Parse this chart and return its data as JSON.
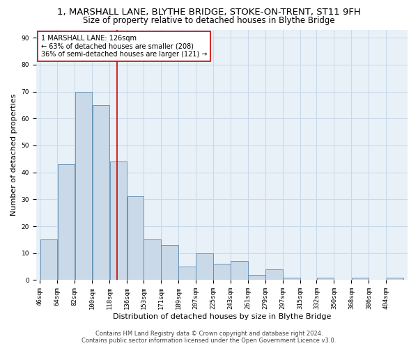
{
  "title": "1, MARSHALL LANE, BLYTHE BRIDGE, STOKE-ON-TRENT, ST11 9FH",
  "subtitle": "Size of property relative to detached houses in Blythe Bridge",
  "xlabel": "Distribution of detached houses by size in Blythe Bridge",
  "ylabel": "Number of detached properties",
  "categories": [
    "46sqm",
    "64sqm",
    "82sqm",
    "100sqm",
    "118sqm",
    "136sqm",
    "153sqm",
    "171sqm",
    "189sqm",
    "207sqm",
    "225sqm",
    "243sqm",
    "261sqm",
    "279sqm",
    "297sqm",
    "315sqm",
    "332sqm",
    "350sqm",
    "368sqm",
    "386sqm",
    "404sqm"
  ],
  "values": [
    15,
    43,
    70,
    65,
    44,
    31,
    15,
    13,
    5,
    10,
    6,
    7,
    2,
    4,
    1,
    0,
    1,
    0,
    1,
    0,
    1
  ],
  "bin_edges": [
    46,
    64,
    82,
    100,
    118,
    136,
    153,
    171,
    189,
    207,
    225,
    243,
    261,
    279,
    297,
    315,
    332,
    350,
    368,
    386,
    404,
    422
  ],
  "bar_color": "#c9d9e8",
  "bar_edge_color": "#5a8ab0",
  "property_line_x": 126,
  "property_line_color": "#cc0000",
  "annotation_text": "1 MARSHALL LANE: 126sqm\n← 63% of detached houses are smaller (208)\n36% of semi-detached houses are larger (121) →",
  "annotation_box_color": "#ffffff",
  "annotation_box_edge_color": "#cc0000",
  "ylim": [
    0,
    93
  ],
  "yticks": [
    0,
    10,
    20,
    30,
    40,
    50,
    60,
    70,
    80,
    90
  ],
  "grid_color": "#c8d8e8",
  "background_color": "#e8f0f8",
  "footer_line1": "Contains HM Land Registry data © Crown copyright and database right 2024.",
  "footer_line2": "Contains public sector information licensed under the Open Government Licence v3.0.",
  "title_fontsize": 9.5,
  "subtitle_fontsize": 8.5,
  "xlabel_fontsize": 8,
  "ylabel_fontsize": 8,
  "tick_fontsize": 6.5,
  "annotation_fontsize": 7,
  "footer_fontsize": 6
}
